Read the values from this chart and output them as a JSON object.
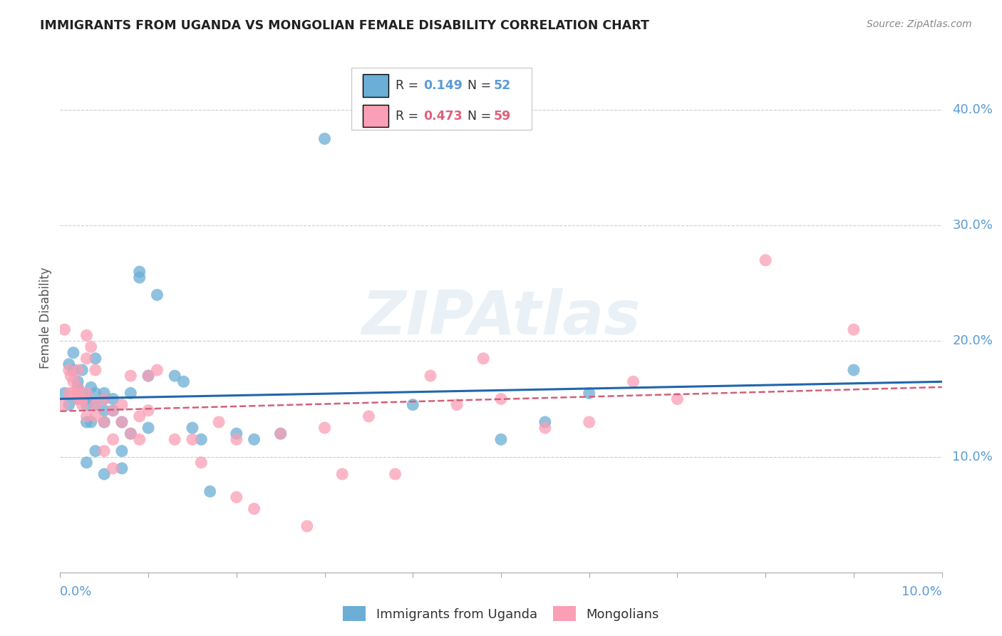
{
  "title": "IMMIGRANTS FROM UGANDA VS MONGOLIAN FEMALE DISABILITY CORRELATION CHART",
  "source": "Source: ZipAtlas.com",
  "ylabel": "Female Disability",
  "ytick_labels": [
    "10.0%",
    "20.0%",
    "30.0%",
    "40.0%"
  ],
  "ytick_values": [
    0.1,
    0.2,
    0.3,
    0.4
  ],
  "xlim": [
    0.0,
    0.1
  ],
  "ylim": [
    0.0,
    0.44
  ],
  "color_blue": "#6baed6",
  "color_pink": "#fa9fb5",
  "trendline_blue_color": "#2166ac",
  "trendline_pink_color": "#d4607a",
  "background": "#ffffff",
  "uganda_x": [
    0.0005,
    0.001,
    0.001,
    0.0015,
    0.0015,
    0.002,
    0.002,
    0.002,
    0.002,
    0.0025,
    0.0025,
    0.003,
    0.003,
    0.003,
    0.003,
    0.0035,
    0.0035,
    0.004,
    0.004,
    0.004,
    0.004,
    0.005,
    0.005,
    0.005,
    0.005,
    0.005,
    0.006,
    0.006,
    0.007,
    0.007,
    0.007,
    0.008,
    0.008,
    0.009,
    0.009,
    0.01,
    0.01,
    0.011,
    0.013,
    0.014,
    0.015,
    0.016,
    0.017,
    0.02,
    0.022,
    0.025,
    0.03,
    0.04,
    0.05,
    0.055,
    0.06,
    0.09
  ],
  "uganda_y": [
    0.155,
    0.18,
    0.145,
    0.19,
    0.175,
    0.155,
    0.16,
    0.165,
    0.15,
    0.155,
    0.175,
    0.145,
    0.15,
    0.13,
    0.095,
    0.13,
    0.16,
    0.145,
    0.185,
    0.155,
    0.105,
    0.14,
    0.15,
    0.13,
    0.155,
    0.085,
    0.14,
    0.15,
    0.13,
    0.105,
    0.09,
    0.12,
    0.155,
    0.255,
    0.26,
    0.17,
    0.125,
    0.24,
    0.17,
    0.165,
    0.125,
    0.115,
    0.07,
    0.12,
    0.115,
    0.12,
    0.375,
    0.145,
    0.115,
    0.13,
    0.155,
    0.175
  ],
  "mongolia_x": [
    0.0003,
    0.0005,
    0.001,
    0.001,
    0.0012,
    0.0015,
    0.0015,
    0.002,
    0.002,
    0.002,
    0.002,
    0.0025,
    0.0025,
    0.003,
    0.003,
    0.003,
    0.003,
    0.0035,
    0.004,
    0.004,
    0.004,
    0.005,
    0.005,
    0.005,
    0.006,
    0.006,
    0.006,
    0.007,
    0.007,
    0.008,
    0.008,
    0.009,
    0.009,
    0.01,
    0.01,
    0.011,
    0.013,
    0.015,
    0.016,
    0.018,
    0.02,
    0.02,
    0.022,
    0.025,
    0.028,
    0.03,
    0.032,
    0.035,
    0.038,
    0.042,
    0.045,
    0.048,
    0.05,
    0.055,
    0.06,
    0.065,
    0.07,
    0.08,
    0.09
  ],
  "mongolia_y": [
    0.145,
    0.21,
    0.175,
    0.155,
    0.17,
    0.155,
    0.165,
    0.15,
    0.155,
    0.16,
    0.175,
    0.145,
    0.15,
    0.155,
    0.135,
    0.185,
    0.205,
    0.195,
    0.175,
    0.145,
    0.135,
    0.15,
    0.13,
    0.105,
    0.14,
    0.115,
    0.09,
    0.13,
    0.145,
    0.12,
    0.17,
    0.135,
    0.115,
    0.14,
    0.17,
    0.175,
    0.115,
    0.115,
    0.095,
    0.13,
    0.115,
    0.065,
    0.055,
    0.12,
    0.04,
    0.125,
    0.085,
    0.135,
    0.085,
    0.17,
    0.145,
    0.185,
    0.15,
    0.125,
    0.13,
    0.165,
    0.15,
    0.27,
    0.21
  ]
}
